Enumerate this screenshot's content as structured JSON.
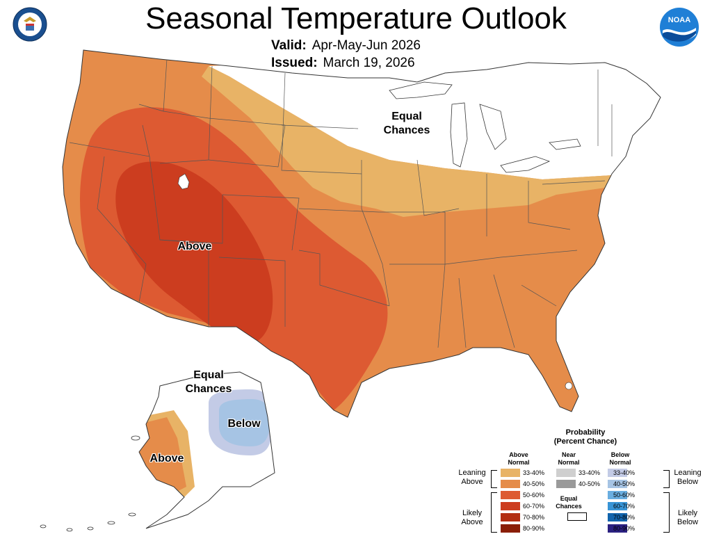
{
  "header": {
    "title": "Seasonal Temperature Outlook",
    "valid_label": "Valid:",
    "valid_value": "Apr-May-Jun 2026",
    "issued_label": "Issued:",
    "issued_value": "March 19, 2026",
    "logo_left": "department-of-commerce-seal",
    "logo_right": "noaa-logo",
    "noaa_text": "NOAA"
  },
  "map_labels": {
    "equal_chances_conus": "Equal\nChances",
    "above_conus": "Above",
    "equal_chances_alaska": "Equal\nChances",
    "below_alaska": "Below",
    "above_alaska": "Above"
  },
  "colors": {
    "above_33_40": "#e8b366",
    "above_40_50": "#e58c4a",
    "above_50_60": "#dd5a32",
    "above_60_70": "#cc3d1f",
    "above_70_80": "#b32e12",
    "above_80_90": "#8a1e07",
    "near_33_40": "#cfcfcf",
    "near_40_50": "#9a9a9a",
    "below_33_40": "#c3cbe6",
    "below_40_50": "#a6c4e4",
    "below_50_60": "#6aaee0",
    "below_60_70": "#3894d6",
    "below_70_80": "#1164ad",
    "below_80_90": "#2a2080",
    "equal_chances": "#ffffff",
    "border": "#333333"
  },
  "legend": {
    "title": "Probability\n(Percent Chance)",
    "above_head": "Above\nNormal",
    "near_head": "Near\nNormal",
    "below_head": "Below\nNormal",
    "above_items": [
      "33-40%",
      "40-50%",
      "50-60%",
      "60-70%",
      "70-80%",
      "80-90%"
    ],
    "near_items": [
      "33-40%",
      "40-50%"
    ],
    "below_items": [
      "33-40%",
      "40-50%",
      "50-60%",
      "60-70%",
      "70-80%",
      "80-90%"
    ],
    "equal_label": "Equal\nChances",
    "leaning_above": "Leaning\nAbove",
    "likely_above": "Likely\nAbove",
    "leaning_below": "Leaning\nBelow",
    "likely_below": "Likely\nBelow"
  }
}
